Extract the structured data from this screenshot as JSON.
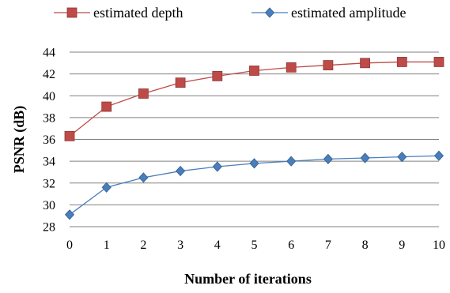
{
  "chart_data": {
    "type": "line",
    "xlabel": "Number of iterations",
    "ylabel": "PSNR (dB)",
    "ylim": [
      28,
      44
    ],
    "yticks": [
      28,
      30,
      32,
      34,
      36,
      38,
      40,
      42,
      44
    ],
    "x": [
      0,
      1,
      2,
      3,
      4,
      5,
      6,
      7,
      8,
      9,
      10
    ],
    "grid": "horizontal",
    "legend_position": "top",
    "series": [
      {
        "name": "estimated depth",
        "color": "#BE4B48",
        "marker": "square",
        "values": [
          36.3,
          39.0,
          40.2,
          41.2,
          41.8,
          42.3,
          42.6,
          42.8,
          43.0,
          43.1,
          43.1
        ]
      },
      {
        "name": "estimated amplitude",
        "color": "#4A7EBB",
        "marker": "diamond",
        "values": [
          29.1,
          31.6,
          32.5,
          33.1,
          33.5,
          33.8,
          34.0,
          34.2,
          34.3,
          34.4,
          34.5
        ]
      }
    ]
  }
}
